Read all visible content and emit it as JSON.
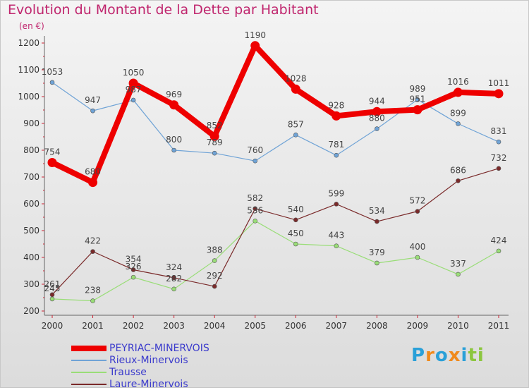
{
  "chart_data": {
    "type": "line",
    "title": "Evolution du Montant de la Dette par Habitant",
    "subtitle": "(en €)",
    "categories": [
      "2000",
      "2001",
      "2002",
      "2003",
      "2004",
      "2005",
      "2006",
      "2007",
      "2008",
      "2009",
      "2010",
      "2011"
    ],
    "ylim": [
      200,
      1200
    ],
    "yticks": [
      200,
      300,
      400,
      500,
      600,
      700,
      800,
      900,
      1000,
      1100,
      1200
    ],
    "grid": false,
    "legend_position": "bottom-left",
    "series": [
      {
        "name": "PEYRIAC-MINERVOIS",
        "color": "#ee0000",
        "values": [
          754,
          680,
          1050,
          969,
          852,
          1190,
          1028,
          928,
          944,
          951,
          1016,
          1011
        ]
      },
      {
        "name": "Rieux-Minervois",
        "color": "#6fa3d6",
        "values": [
          1053,
          947,
          987,
          800,
          789,
          760,
          857,
          781,
          880,
          989,
          899,
          831
        ]
      },
      {
        "name": "Trausse",
        "color": "#99dd77",
        "values": [
          245,
          238,
          326,
          282,
          388,
          536,
          450,
          443,
          379,
          400,
          337,
          424
        ]
      },
      {
        "name": "Laure-Minervois",
        "color": "#7a2a2a",
        "values": [
          261,
          422,
          354,
          324,
          292,
          582,
          540,
          599,
          534,
          572,
          686,
          732
        ]
      }
    ]
  },
  "logo": {
    "letters": [
      "P",
      "r",
      "o",
      "x",
      "i",
      "t",
      "i"
    ],
    "colors": [
      "#2aa0d8",
      "#f08a1c",
      "#2aa0d8",
      "#f08a1c",
      "#2aa0d8",
      "#8cc63f",
      "#8cc63f"
    ]
  }
}
